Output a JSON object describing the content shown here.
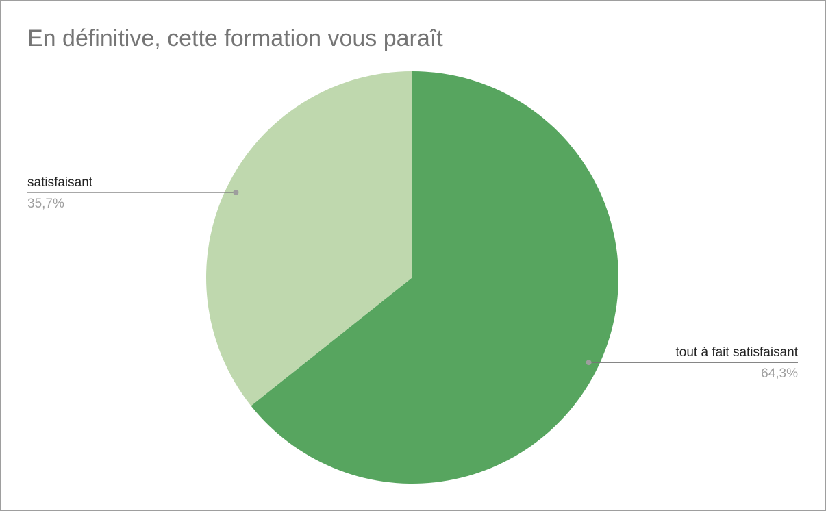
{
  "chart_data": {
    "type": "pie",
    "title": "En définitive, cette formation vous paraît",
    "categories": [
      "tout à fait satisfaisant",
      "satisfaisant"
    ],
    "values": [
      64.3,
      35.7
    ],
    "value_labels": [
      "64,3%",
      "35,7%"
    ],
    "colors": [
      "#57a55f",
      "#bfd8ae"
    ]
  }
}
